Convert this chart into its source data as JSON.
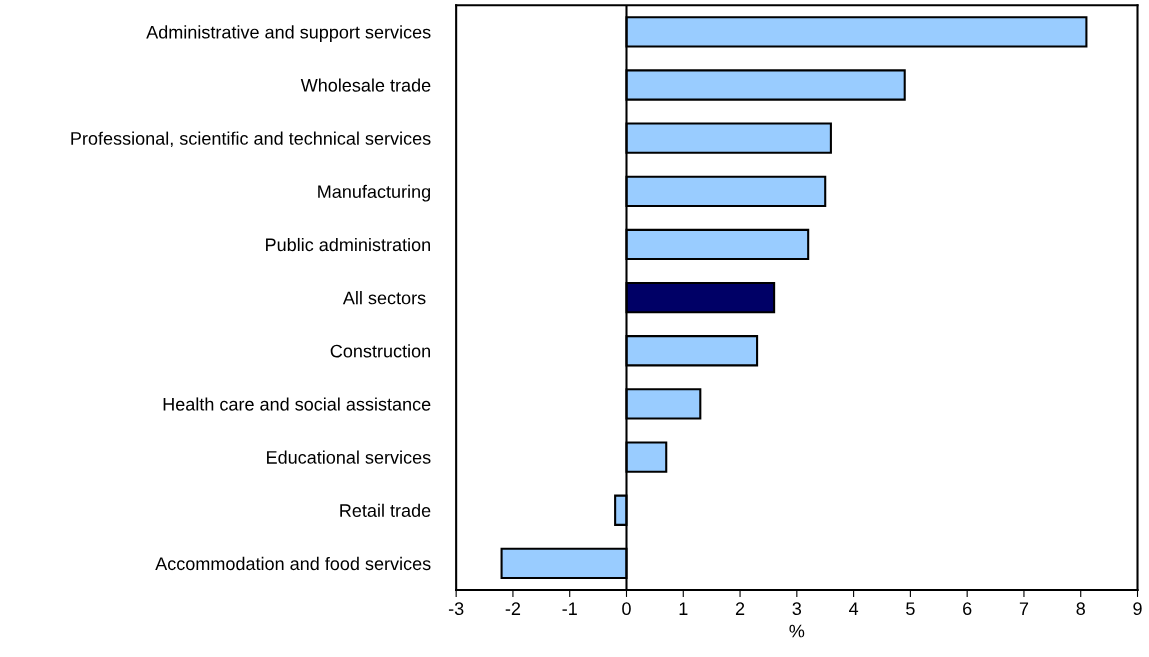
{
  "chart_data": {
    "type": "bar",
    "orientation": "horizontal",
    "xlabel": "%",
    "categories": [
      "Administrative and support services",
      "Wholesale trade",
      "Professional, scientific and technical services",
      "Manufacturing",
      "Public administration",
      "All sectors ",
      "Construction",
      "Health care and social assistance",
      "Educational services",
      "Retail trade",
      "Accommodation and food services"
    ],
    "values": [
      8.1,
      4.9,
      3.6,
      3.5,
      3.2,
      2.6,
      2.3,
      1.3,
      0.7,
      -0.2,
      -2.2
    ],
    "colors": [
      "#99ccff",
      "#99ccff",
      "#99ccff",
      "#99ccff",
      "#99ccff",
      "#000066",
      "#99ccff",
      "#99ccff",
      "#99ccff",
      "#99ccff",
      "#99ccff"
    ],
    "xlim": [
      -3,
      9
    ],
    "xticks": [
      -3,
      -2,
      -1,
      0,
      1,
      2,
      3,
      4,
      5,
      6,
      7,
      8,
      9
    ],
    "ref_lines": [
      {
        "axis": "x",
        "value": 0,
        "color": "#000000"
      }
    ],
    "grid": false
  }
}
